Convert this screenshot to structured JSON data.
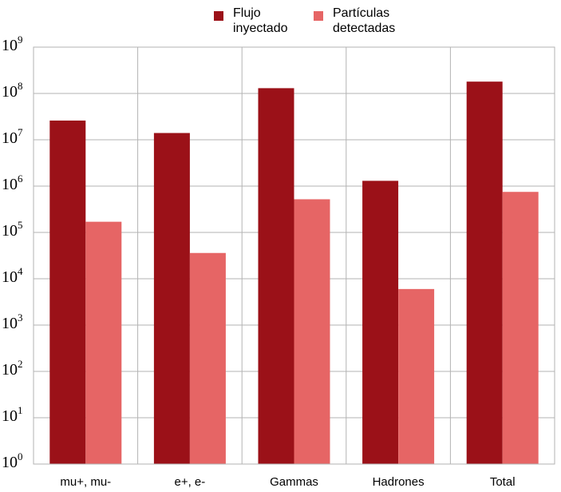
{
  "chart_data": {
    "type": "bar",
    "y_scale": "log10",
    "ylim": [
      1,
      1000000000
    ],
    "y_ticks": [
      1,
      10,
      100,
      1000,
      10000,
      100000,
      1000000,
      10000000,
      100000000,
      1000000000
    ],
    "y_tick_labels": [
      {
        "base": "10",
        "exp": "0"
      },
      {
        "base": "10",
        "exp": "1"
      },
      {
        "base": "10",
        "exp": "2"
      },
      {
        "base": "10",
        "exp": "3"
      },
      {
        "base": "10",
        "exp": "4"
      },
      {
        "base": "10",
        "exp": "5"
      },
      {
        "base": "10",
        "exp": "6"
      },
      {
        "base": "10",
        "exp": "7"
      },
      {
        "base": "10",
        "exp": "8"
      },
      {
        "base": "10",
        "exp": "9"
      }
    ],
    "categories": [
      "mu+, mu-",
      "e+, e-",
      "Gammas",
      "Hadrones",
      "Total"
    ],
    "series": [
      {
        "name": "Flujo inyectado",
        "name_lines": [
          "Flujo",
          "inyectado"
        ],
        "color": "#9b1118",
        "values": [
          26000000,
          14000000,
          130000000,
          1300000,
          180000000
        ]
      },
      {
        "name": "Partículas detectadas",
        "name_lines": [
          "Partículas",
          "detectadas"
        ],
        "color": "#e66565",
        "values": [
          170000,
          36000,
          520000,
          6000,
          750000
        ]
      }
    ],
    "grid": true,
    "legend_position": "top-center",
    "title": "",
    "xlabel": "",
    "ylabel": ""
  }
}
